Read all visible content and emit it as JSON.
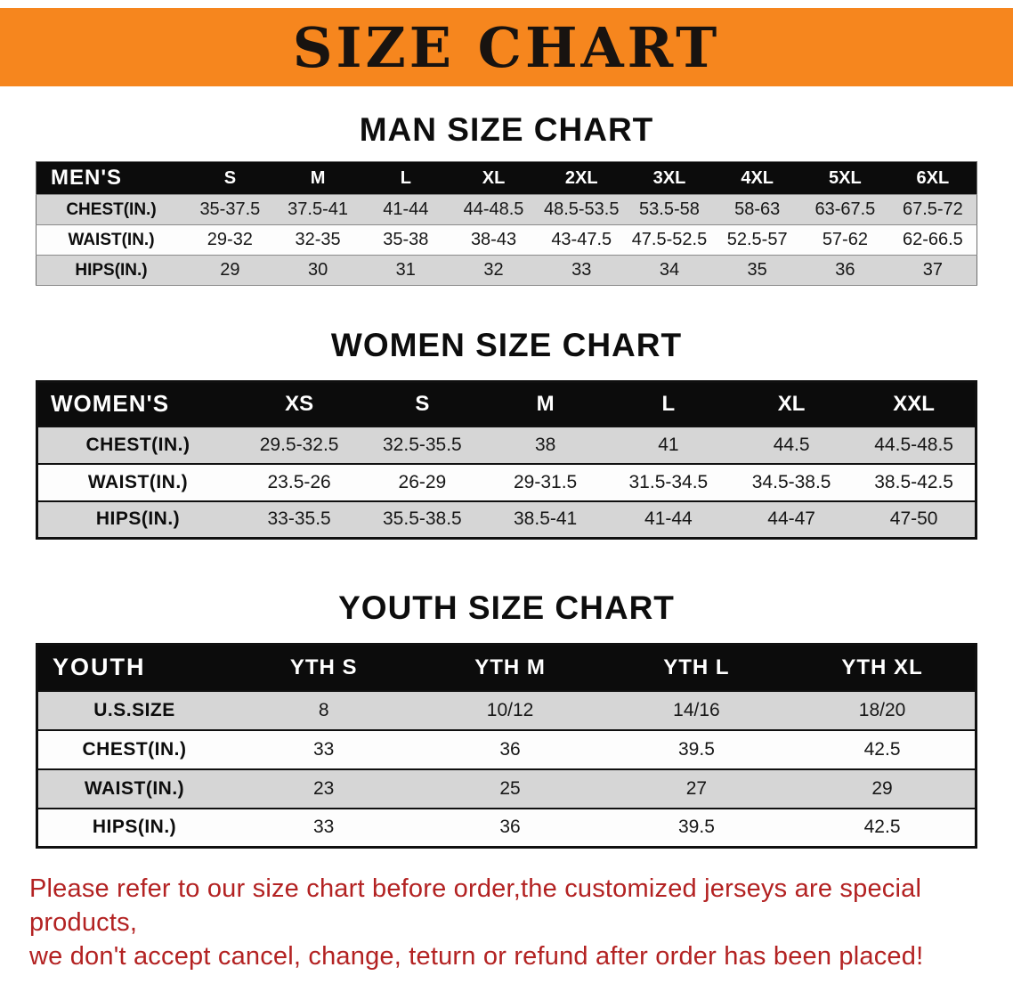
{
  "banner": {
    "title": "SIZE CHART",
    "bg_color": "#f6861e"
  },
  "sections": {
    "men": {
      "heading": "MAN SIZE CHART"
    },
    "women": {
      "heading": "WOMEN SIZE CHART"
    },
    "youth": {
      "heading": "YOUTH SIZE CHART"
    }
  },
  "tables": {
    "men": {
      "corner": "MEN'S",
      "sizes": [
        "S",
        "M",
        "L",
        "XL",
        "2XL",
        "3XL",
        "4XL",
        "5XL",
        "6XL"
      ],
      "rows": [
        {
          "label": "CHEST(IN.)",
          "values": [
            "35-37.5",
            "37.5-41",
            "41-44",
            "44-48.5",
            "48.5-53.5",
            "53.5-58",
            "58-63",
            "63-67.5",
            "67.5-72"
          ]
        },
        {
          "label": "WAIST(IN.)",
          "values": [
            "29-32",
            "32-35",
            "35-38",
            "38-43",
            "43-47.5",
            "47.5-52.5",
            "52.5-57",
            "57-62",
            "62-66.5"
          ]
        },
        {
          "label": "HIPS(IN.)",
          "values": [
            "29",
            "30",
            "31",
            "32",
            "33",
            "34",
            "35",
            "36",
            "37"
          ]
        }
      ]
    },
    "women": {
      "corner": "WOMEN'S",
      "sizes": [
        "XS",
        "S",
        "M",
        "L",
        "XL",
        "XXL"
      ],
      "rows": [
        {
          "label": "CHEST(IN.)",
          "values": [
            "29.5-32.5",
            "32.5-35.5",
            "38",
            "41",
            "44.5",
            "44.5-48.5"
          ]
        },
        {
          "label": "WAIST(IN.)",
          "values": [
            "23.5-26",
            "26-29",
            "29-31.5",
            "31.5-34.5",
            "34.5-38.5",
            "38.5-42.5"
          ]
        },
        {
          "label": "HIPS(IN.)",
          "values": [
            "33-35.5",
            "35.5-38.5",
            "38.5-41",
            "41-44",
            "44-47",
            "47-50"
          ]
        }
      ]
    },
    "youth": {
      "corner": "YOUTH",
      "sizes": [
        "YTH S",
        "YTH M",
        "YTH L",
        "YTH XL"
      ],
      "rows": [
        {
          "label": "U.S.SIZE",
          "values": [
            "8",
            "10/12",
            "14/16",
            "18/20"
          ]
        },
        {
          "label": "CHEST(IN.)",
          "values": [
            "33",
            "36",
            "39.5",
            "42.5"
          ]
        },
        {
          "label": "WAIST(IN.)",
          "values": [
            "23",
            "25",
            "27",
            "29"
          ]
        },
        {
          "label": "HIPS(IN.)",
          "values": [
            "33",
            "36",
            "39.5",
            "42.5"
          ]
        }
      ]
    }
  },
  "footnote": {
    "color": "#b32222",
    "lines": [
      "Please refer to our size chart before order,the customized jerseys are special products,",
      "we don't accept cancel, change, teturn or refund after order has been placed!"
    ]
  },
  "chart_data": [
    {
      "type": "table",
      "title": "MAN SIZE CHART",
      "columns": [
        "MEN'S",
        "S",
        "M",
        "L",
        "XL",
        "2XL",
        "3XL",
        "4XL",
        "5XL",
        "6XL"
      ],
      "rows": [
        [
          "CHEST(IN.)",
          "35-37.5",
          "37.5-41",
          "41-44",
          "44-48.5",
          "48.5-53.5",
          "53.5-58",
          "58-63",
          "63-67.5",
          "67.5-72"
        ],
        [
          "WAIST(IN.)",
          "29-32",
          "32-35",
          "35-38",
          "38-43",
          "43-47.5",
          "47.5-52.5",
          "52.5-57",
          "57-62",
          "62-66.5"
        ],
        [
          "HIPS(IN.)",
          "29",
          "30",
          "31",
          "32",
          "33",
          "34",
          "35",
          "36",
          "37"
        ]
      ]
    },
    {
      "type": "table",
      "title": "WOMEN SIZE CHART",
      "columns": [
        "WOMEN'S",
        "XS",
        "S",
        "M",
        "L",
        "XL",
        "XXL"
      ],
      "rows": [
        [
          "CHEST(IN.)",
          "29.5-32.5",
          "32.5-35.5",
          "38",
          "41",
          "44.5",
          "44.5-48.5"
        ],
        [
          "WAIST(IN.)",
          "23.5-26",
          "26-29",
          "29-31.5",
          "31.5-34.5",
          "34.5-38.5",
          "38.5-42.5"
        ],
        [
          "HIPS(IN.)",
          "33-35.5",
          "35.5-38.5",
          "38.5-41",
          "41-44",
          "44-47",
          "47-50"
        ]
      ]
    },
    {
      "type": "table",
      "title": "YOUTH SIZE CHART",
      "columns": [
        "YOUTH",
        "YTH S",
        "YTH M",
        "YTH L",
        "YTH XL"
      ],
      "rows": [
        [
          "U.S.SIZE",
          "8",
          "10/12",
          "14/16",
          "18/20"
        ],
        [
          "CHEST(IN.)",
          "33",
          "36",
          "39.5",
          "42.5"
        ],
        [
          "WAIST(IN.)",
          "23",
          "25",
          "27",
          "29"
        ],
        [
          "HIPS(IN.)",
          "33",
          "36",
          "39.5",
          "42.5"
        ]
      ]
    }
  ]
}
